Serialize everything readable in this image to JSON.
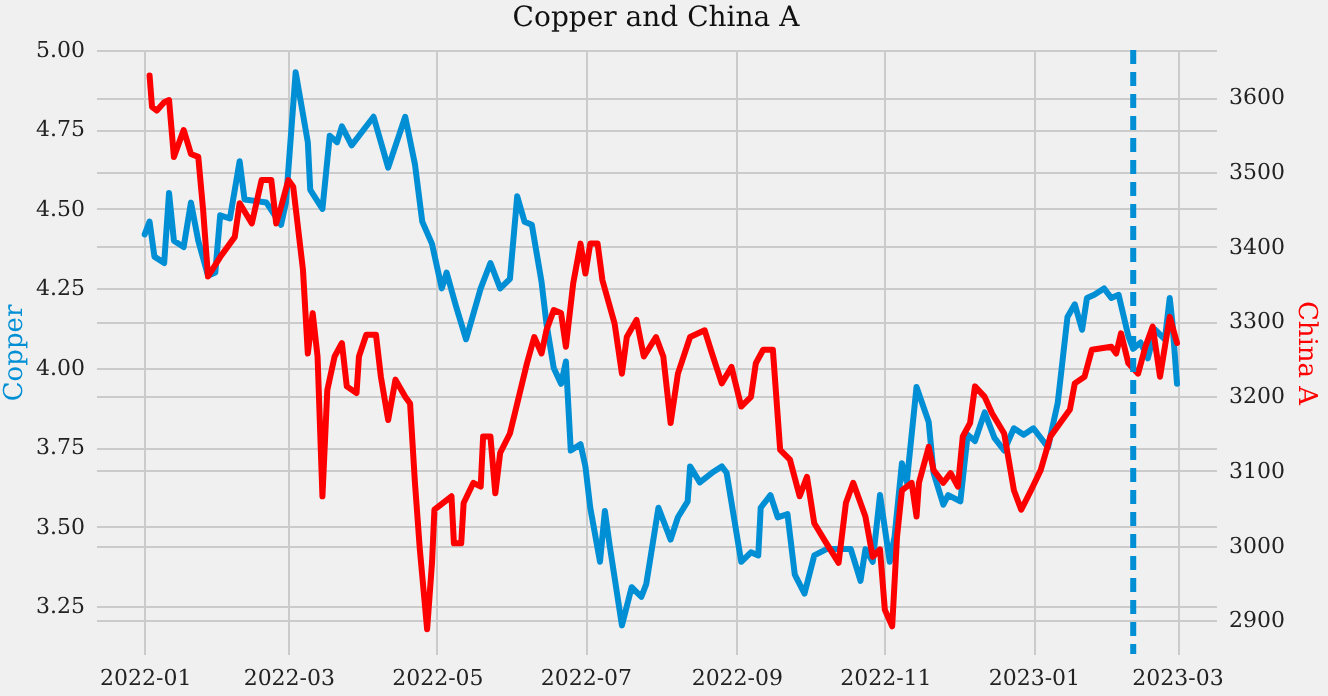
{
  "chart_data": {
    "type": "line",
    "title": "Copper and China A",
    "ylabel": "Copper",
    "y2label": "China A",
    "xlim": [
      "2021-12-12",
      "2023-03-17"
    ],
    "xticks": [
      "2022-01",
      "2022-03",
      "2022-05",
      "2022-07",
      "2022-09",
      "2022-11",
      "2023-01",
      "2023-03"
    ],
    "ylim": [
      3.1,
      5.0
    ],
    "yticks": [
      {
        "value": 3.25,
        "label": "3.25"
      },
      {
        "value": 3.5,
        "label": "3.50"
      },
      {
        "value": 3.75,
        "label": "3.75"
      },
      {
        "value": 4.0,
        "label": "4.00"
      },
      {
        "value": 4.25,
        "label": "4.25"
      },
      {
        "value": 4.5,
        "label": "4.50"
      },
      {
        "value": 4.75,
        "label": "4.75"
      },
      {
        "value": 5.0,
        "label": "5.00"
      }
    ],
    "y2lim": [
      2855,
      3663
    ],
    "y2ticks": [
      2900,
      3000,
      3100,
      3200,
      3300,
      3400,
      3500,
      3600
    ],
    "grid": true,
    "line_style": "solid",
    "marker": "none",
    "ref_lines": [
      {
        "axis": "x",
        "value": "2023-02-11",
        "color": "#008fd5",
        "line_style": "dashed"
      }
    ],
    "series": [
      {
        "color": "#008fd5",
        "x": [
          "2022-01-01",
          "2022-01-03",
          "2022-01-05",
          "2022-01-09",
          "2022-01-11",
          "2022-01-13",
          "2022-01-17",
          "2022-01-20",
          "2022-01-23",
          "2022-01-27",
          "2022-01-30",
          "2022-02-01",
          "2022-02-05",
          "2022-02-09",
          "2022-02-11",
          "2022-02-20",
          "2022-02-26",
          "2022-02-28",
          "2022-03-04",
          "2022-03-09",
          "2022-03-10",
          "2022-03-15",
          "2022-03-18",
          "2022-03-21",
          "2022-03-23",
          "2022-03-27",
          "2022-04-05",
          "2022-04-08",
          "2022-04-11",
          "2022-04-18",
          "2022-04-22",
          "2022-04-25",
          "2022-04-29",
          "2022-05-03",
          "2022-05-05",
          "2022-05-09",
          "2022-05-13",
          "2022-05-19",
          "2022-05-23",
          "2022-05-27",
          "2022-05-31",
          "2022-06-03",
          "2022-06-06",
          "2022-06-09",
          "2022-06-13",
          "2022-06-15",
          "2022-06-18",
          "2022-06-21",
          "2022-06-23",
          "2022-06-25",
          "2022-06-29",
          "2022-07-01",
          "2022-07-03",
          "2022-07-07",
          "2022-07-09",
          "2022-07-11",
          "2022-07-16",
          "2022-07-20",
          "2022-07-24",
          "2022-07-26",
          "2022-07-31",
          "2022-08-05",
          "2022-08-08",
          "2022-08-12",
          "2022-08-13",
          "2022-08-17",
          "2022-08-22",
          "2022-08-26",
          "2022-08-28",
          "2022-09-03",
          "2022-09-07",
          "2022-09-10",
          "2022-09-11",
          "2022-09-15",
          "2022-09-18",
          "2022-09-22",
          "2022-09-25",
          "2022-09-29",
          "2022-10-03",
          "2022-10-08",
          "2022-10-14",
          "2022-10-18",
          "2022-10-22",
          "2022-10-24",
          "2022-10-27",
          "2022-10-30",
          "2022-11-03",
          "2022-11-05",
          "2022-11-08",
          "2022-11-10",
          "2022-11-14",
          "2022-11-19",
          "2022-11-21",
          "2022-11-25",
          "2022-11-27",
          "2022-12-02",
          "2022-12-05",
          "2022-12-08",
          "2022-12-12",
          "2022-12-16",
          "2022-12-20",
          "2022-12-24",
          "2022-12-28",
          "2023-01-01",
          "2023-01-07",
          "2023-01-11",
          "2023-01-15",
          "2023-01-18",
          "2023-01-21",
          "2023-01-23",
          "2023-01-26",
          "2023-01-30",
          "2023-02-02",
          "2023-02-05",
          "2023-02-09",
          "2023-02-11",
          "2023-02-14",
          "2023-02-17",
          "2023-02-20",
          "2023-02-24",
          "2023-02-26",
          "2023-02-27",
          "2023-03-01"
        ],
        "values": [
          4.42,
          4.46,
          4.35,
          4.33,
          4.55,
          4.4,
          4.38,
          4.52,
          4.4,
          4.29,
          4.3,
          4.48,
          4.47,
          4.65,
          4.53,
          4.52,
          4.45,
          4.52,
          4.93,
          4.71,
          4.56,
          4.5,
          4.73,
          4.71,
          4.76,
          4.7,
          4.79,
          4.71,
          4.63,
          4.79,
          4.64,
          4.46,
          4.39,
          4.25,
          4.3,
          4.19,
          4.09,
          4.25,
          4.33,
          4.25,
          4.28,
          4.54,
          4.46,
          4.45,
          4.27,
          4.14,
          4.0,
          3.95,
          4.02,
          3.74,
          3.76,
          3.69,
          3.56,
          3.39,
          3.55,
          3.44,
          3.19,
          3.31,
          3.28,
          3.32,
          3.56,
          3.46,
          3.53,
          3.58,
          3.69,
          3.64,
          3.67,
          3.69,
          3.67,
          3.39,
          3.42,
          3.41,
          3.56,
          3.6,
          3.53,
          3.54,
          3.35,
          3.29,
          3.41,
          3.43,
          3.43,
          3.43,
          3.33,
          3.43,
          3.39,
          3.6,
          3.39,
          3.47,
          3.7,
          3.64,
          3.94,
          3.83,
          3.67,
          3.57,
          3.6,
          3.58,
          3.79,
          3.77,
          3.86,
          3.78,
          3.74,
          3.81,
          3.79,
          3.81,
          3.75,
          3.89,
          4.16,
          4.2,
          4.12,
          4.22,
          4.23,
          4.25,
          4.22,
          4.23,
          4.1,
          4.06,
          4.08,
          4.03,
          4.12,
          4.09,
          4.22,
          4.15,
          3.95
        ]
      },
      {
        "color": "#ff0000",
        "axis": "y2",
        "x": [
          "2022-01-03",
          "2022-01-04",
          "2022-01-06",
          "2022-01-09",
          "2022-01-11",
          "2022-01-13",
          "2022-01-17",
          "2022-01-20",
          "2022-01-23",
          "2022-01-25",
          "2022-01-27",
          "2022-02-01",
          "2022-02-07",
          "2022-02-09",
          "2022-02-14",
          "2022-02-18",
          "2022-02-22",
          "2022-02-24",
          "2022-02-26",
          "2022-03-01",
          "2022-03-03",
          "2022-03-07",
          "2022-03-09",
          "2022-03-11",
          "2022-03-13",
          "2022-03-15",
          "2022-03-17",
          "2022-03-20",
          "2022-03-23",
          "2022-03-25",
          "2022-03-29",
          "2022-03-30",
          "2022-04-02",
          "2022-04-06",
          "2022-04-08",
          "2022-04-11",
          "2022-04-14",
          "2022-04-18",
          "2022-04-20",
          "2022-04-22",
          "2022-04-24",
          "2022-04-27",
          "2022-04-29",
          "2022-04-30",
          "2022-05-07",
          "2022-05-08",
          "2022-05-11",
          "2022-05-12",
          "2022-05-16",
          "2022-05-19",
          "2022-05-20",
          "2022-05-23",
          "2022-05-25",
          "2022-05-27",
          "2022-05-31",
          "2022-06-03",
          "2022-06-07",
          "2022-06-10",
          "2022-06-13",
          "2022-06-15",
          "2022-06-18",
          "2022-06-21",
          "2022-06-23",
          "2022-06-26",
          "2022-06-29",
          "2022-07-01",
          "2022-07-03",
          "2022-07-06",
          "2022-07-08",
          "2022-07-13",
          "2022-07-16",
          "2022-07-18",
          "2022-07-22",
          "2022-07-25",
          "2022-07-30",
          "2022-08-02",
          "2022-08-05",
          "2022-08-08",
          "2022-08-13",
          "2022-08-19",
          "2022-08-22",
          "2022-08-26",
          "2022-08-30",
          "2022-09-03",
          "2022-09-07",
          "2022-09-09",
          "2022-09-12",
          "2022-09-16",
          "2022-09-19",
          "2022-09-23",
          "2022-09-27",
          "2022-09-30",
          "2022-10-03",
          "2022-10-08",
          "2022-10-13",
          "2022-10-16",
          "2022-10-19",
          "2022-10-24",
          "2022-10-27",
          "2022-10-30",
          "2022-11-01",
          "2022-11-04",
          "2022-11-06",
          "2022-11-08",
          "2022-11-12",
          "2022-11-14",
          "2022-11-15",
          "2022-11-19",
          "2022-11-21",
          "2022-11-25",
          "2022-11-28",
          "2022-12-01",
          "2022-12-03",
          "2022-12-06",
          "2022-12-08",
          "2022-12-12",
          "2022-12-15",
          "2022-12-20",
          "2022-12-24",
          "2022-12-27",
          "2022-12-31",
          "2023-01-04",
          "2023-01-08",
          "2023-01-12",
          "2023-01-16",
          "2023-01-18",
          "2023-01-22",
          "2023-01-25",
          "2023-02-02",
          "2023-02-04",
          "2023-02-06",
          "2023-02-09",
          "2023-02-13",
          "2023-02-16",
          "2023-02-19",
          "2023-02-22",
          "2023-02-26",
          "2023-03-01"
        ],
        "values": [
          3629,
          3587,
          3582,
          3593,
          3596,
          3520,
          3556,
          3524,
          3520,
          3449,
          3360,
          3386,
          3413,
          3458,
          3431,
          3489,
          3489,
          3431,
          3453,
          3489,
          3480,
          3369,
          3257,
          3311,
          3253,
          3066,
          3208,
          3253,
          3271,
          3213,
          3204,
          3253,
          3282,
          3282,
          3226,
          3168,
          3222,
          3199,
          3190,
          3084,
          2995,
          2888,
          2977,
          3048,
          3066,
          3003,
          3003,
          3057,
          3084,
          3079,
          3146,
          3146,
          3070,
          3124,
          3150,
          3190,
          3244,
          3279,
          3257,
          3288,
          3315,
          3311,
          3266,
          3351,
          3404,
          3364,
          3404,
          3404,
          3355,
          3297,
          3230,
          3279,
          3302,
          3253,
          3279,
          3253,
          3164,
          3230,
          3279,
          3288,
          3257,
          3217,
          3239,
          3186,
          3199,
          3244,
          3262,
          3262,
          3128,
          3115,
          3066,
          3092,
          3030,
          3003,
          2977,
          3057,
          3084,
          3039,
          2985,
          2995,
          2914,
          2892,
          3012,
          3074,
          3084,
          3039,
          3084,
          3132,
          3101,
          3084,
          3097,
          3079,
          3146,
          3164,
          3213,
          3199,
          3177,
          3150,
          3074,
          3048,
          3074,
          3101,
          3146,
          3164,
          3182,
          3217,
          3226,
          3262,
          3266,
          3257,
          3284,
          3244,
          3230,
          3266,
          3293,
          3226,
          3306,
          3271
        ]
      }
    ]
  }
}
